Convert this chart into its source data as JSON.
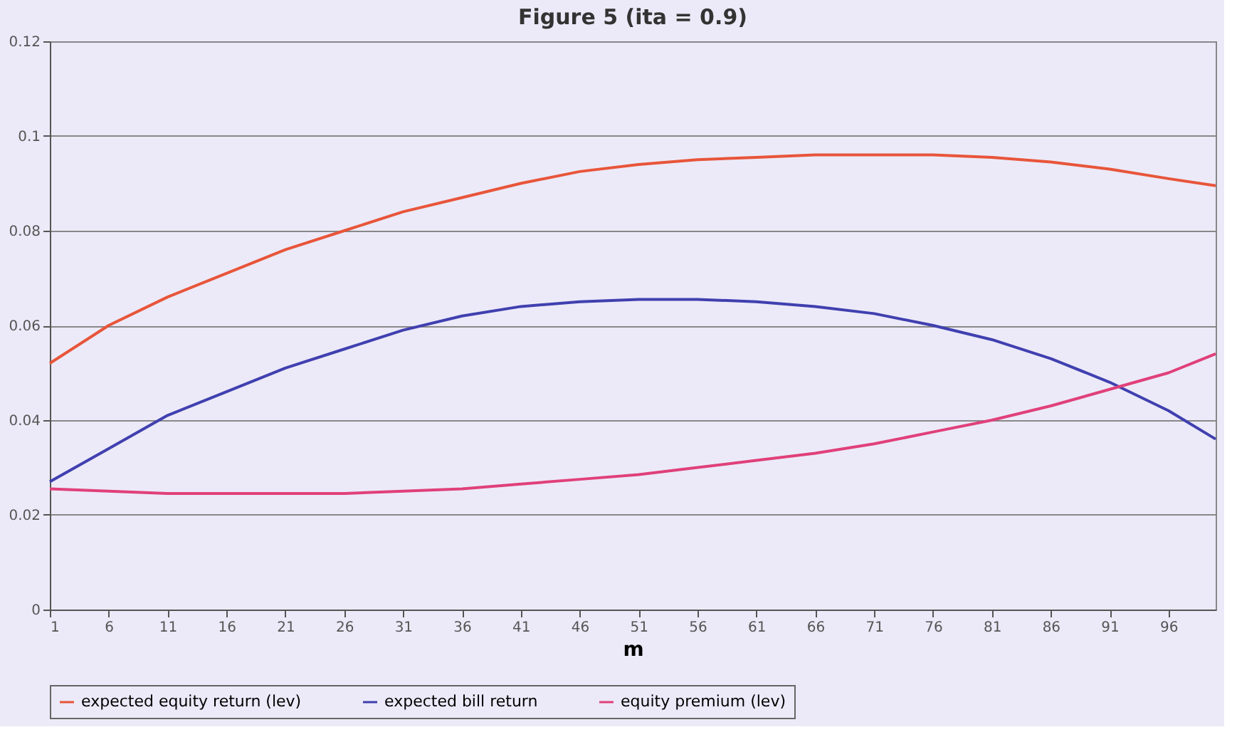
{
  "chart_data": {
    "type": "line",
    "title": "Figure 5 (ita = 0.9)",
    "xlabel": "m",
    "x": [
      1,
      6,
      11,
      16,
      21,
      26,
      31,
      36,
      41,
      46,
      51,
      56,
      61,
      66,
      71,
      76,
      81,
      86,
      91,
      96,
      100
    ],
    "xlim": [
      1,
      100
    ],
    "xticks": [
      1,
      6,
      11,
      16,
      21,
      26,
      31,
      36,
      41,
      46,
      51,
      56,
      61,
      66,
      71,
      76,
      81,
      86,
      91,
      96
    ],
    "ylim": [
      0,
      0.12
    ],
    "yticks": [
      0,
      0.02,
      0.04,
      0.06,
      0.08,
      0.1,
      0.12
    ],
    "grid": "y",
    "legend": "bottom",
    "marker": "none",
    "line_style": "solid",
    "series": [
      {
        "name": "expected equity return (lev)",
        "color": "#e8553a",
        "values": [
          0.052,
          0.06,
          0.066,
          0.071,
          0.076,
          0.08,
          0.084,
          0.087,
          0.09,
          0.0925,
          0.094,
          0.095,
          0.0955,
          0.096,
          0.096,
          0.096,
          0.0955,
          0.0945,
          0.093,
          0.091,
          0.0895
        ]
      },
      {
        "name": "expected bill return",
        "color": "#4040b0",
        "values": [
          0.027,
          0.034,
          0.041,
          0.046,
          0.051,
          0.055,
          0.059,
          0.062,
          0.064,
          0.065,
          0.0655,
          0.0655,
          0.065,
          0.064,
          0.0625,
          0.06,
          0.057,
          0.053,
          0.048,
          0.042,
          0.036
        ]
      },
      {
        "name": "equity premium (lev)",
        "color": "#e0407a",
        "values": [
          0.0255,
          0.025,
          0.0245,
          0.0245,
          0.0245,
          0.0245,
          0.025,
          0.0255,
          0.0265,
          0.0275,
          0.0285,
          0.03,
          0.0315,
          0.033,
          0.035,
          0.0375,
          0.04,
          0.043,
          0.0465,
          0.05,
          0.054
        ]
      }
    ]
  }
}
